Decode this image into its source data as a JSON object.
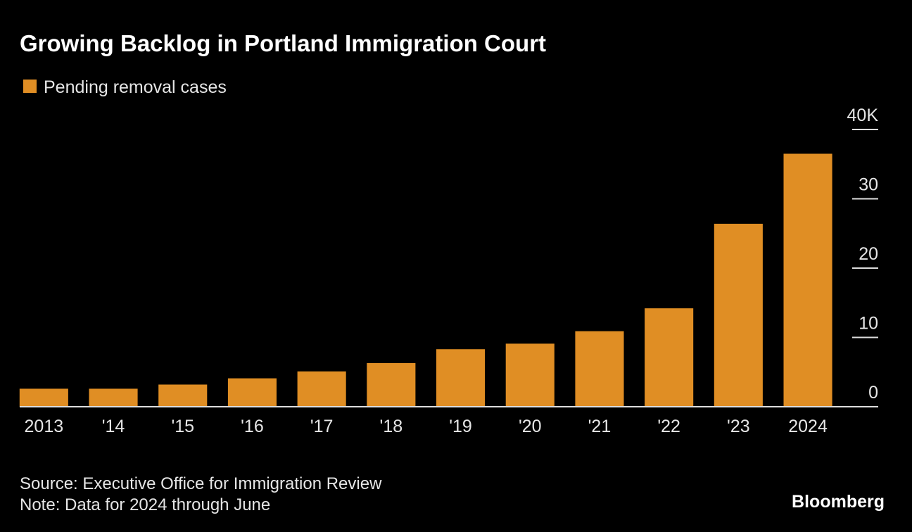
{
  "chart_data": {
    "type": "bar",
    "title": "Growing Backlog in Portland Immigration Court",
    "categories": [
      "2013",
      "'14",
      "'15",
      "'16",
      "'17",
      "'18",
      "'19",
      "'20",
      "'21",
      "'22",
      "'23",
      "2024"
    ],
    "series": [
      {
        "name": "Pending removal cases",
        "color": "#e08e24",
        "values": [
          2.6,
          2.6,
          3.2,
          4.1,
          5.1,
          6.3,
          8.3,
          9.1,
          10.9,
          14.2,
          26.4,
          36.5
        ]
      }
    ],
    "ylim": [
      0,
      40
    ],
    "yticks": [
      0,
      10,
      20,
      30,
      {
        "value": 40,
        "label": "40K"
      }
    ],
    "source": "Source: Executive Office for Immigration Review",
    "note": "Note: Data for 2024 through June",
    "logo": "Bloomberg"
  }
}
